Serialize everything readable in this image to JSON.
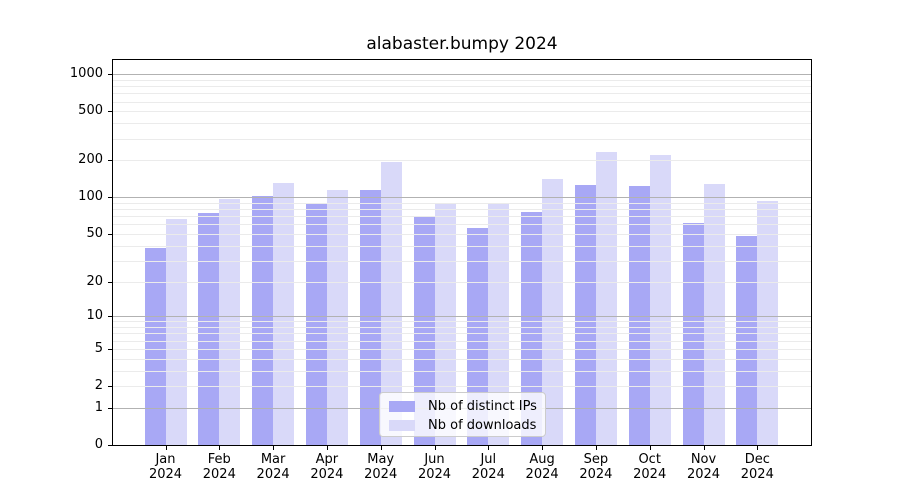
{
  "title": "alabaster.bumpy 2024",
  "colors": {
    "distinct_ips_bar": "#a8a8f5",
    "downloads_bar": "#d9d9f9",
    "major_gridline": "#b2b2b2",
    "minor_gridline": "#ebebeb",
    "axis_line": "#000000",
    "legend_border": "#cccccc",
    "legend_background": "rgba(255,255,255,0.8)",
    "text": "#000000"
  },
  "legend": {
    "position": "lower center",
    "items": [
      {
        "label": "Nb of distinct IPs",
        "color_key": "distinct_ips_bar"
      },
      {
        "label": "Nb of downloads",
        "color_key": "downloads_bar"
      }
    ]
  },
  "chart_data": {
    "type": "bar",
    "title": "alabaster.bumpy 2024",
    "xlabel": "",
    "ylabel": "",
    "scale": "log1p",
    "grid": true,
    "legend_position": "lower center",
    "categories": [
      "Jan 2024",
      "Feb 2024",
      "Mar 2024",
      "Apr 2024",
      "May 2024",
      "Jun 2024",
      "Jul 2024",
      "Aug 2024",
      "Sep 2024",
      "Oct 2024",
      "Nov 2024",
      "Dec 2024"
    ],
    "series": [
      {
        "name": "Nb of distinct IPs",
        "values": [
          38,
          74,
          102,
          90,
          115,
          69,
          56,
          76,
          127,
          123,
          62,
          48
        ]
      },
      {
        "name": "Nb of downloads",
        "values": [
          66,
          96,
          130,
          115,
          192,
          90,
          88,
          140,
          232,
          221,
          128,
          93
        ]
      }
    ],
    "y_ticks": [
      "0",
      "1",
      "2",
      "5",
      "10",
      "20",
      "50",
      "100",
      "200",
      "500",
      "1000"
    ],
    "ylim": [
      0,
      1300
    ]
  }
}
